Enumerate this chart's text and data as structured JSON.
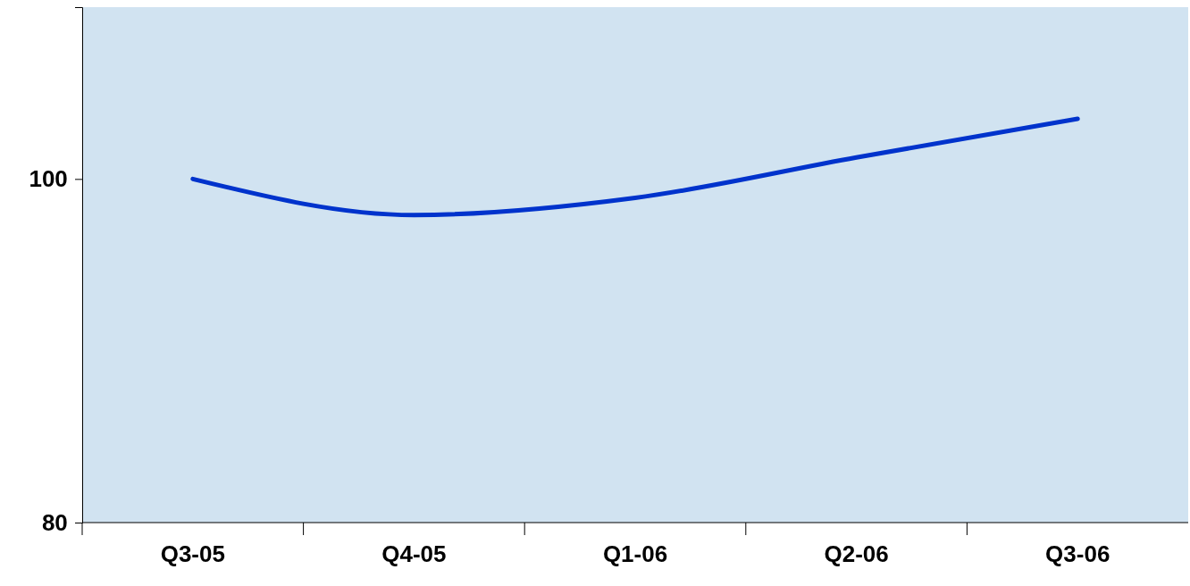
{
  "chart_data": {
    "type": "line",
    "categories": [
      "Q3-05",
      "Q4-05",
      "Q1-06",
      "Q2-06",
      "Q3-06"
    ],
    "series": [
      {
        "color": "#0033cc",
        "values": [
          100,
          97.9,
          98.9,
          101.25,
          103.5
        ]
      }
    ],
    "ylim": [
      80,
      110
    ],
    "yticks": [
      80,
      100
    ],
    "grid": false,
    "legend": false,
    "marker": "none",
    "line_style": "solid"
  }
}
